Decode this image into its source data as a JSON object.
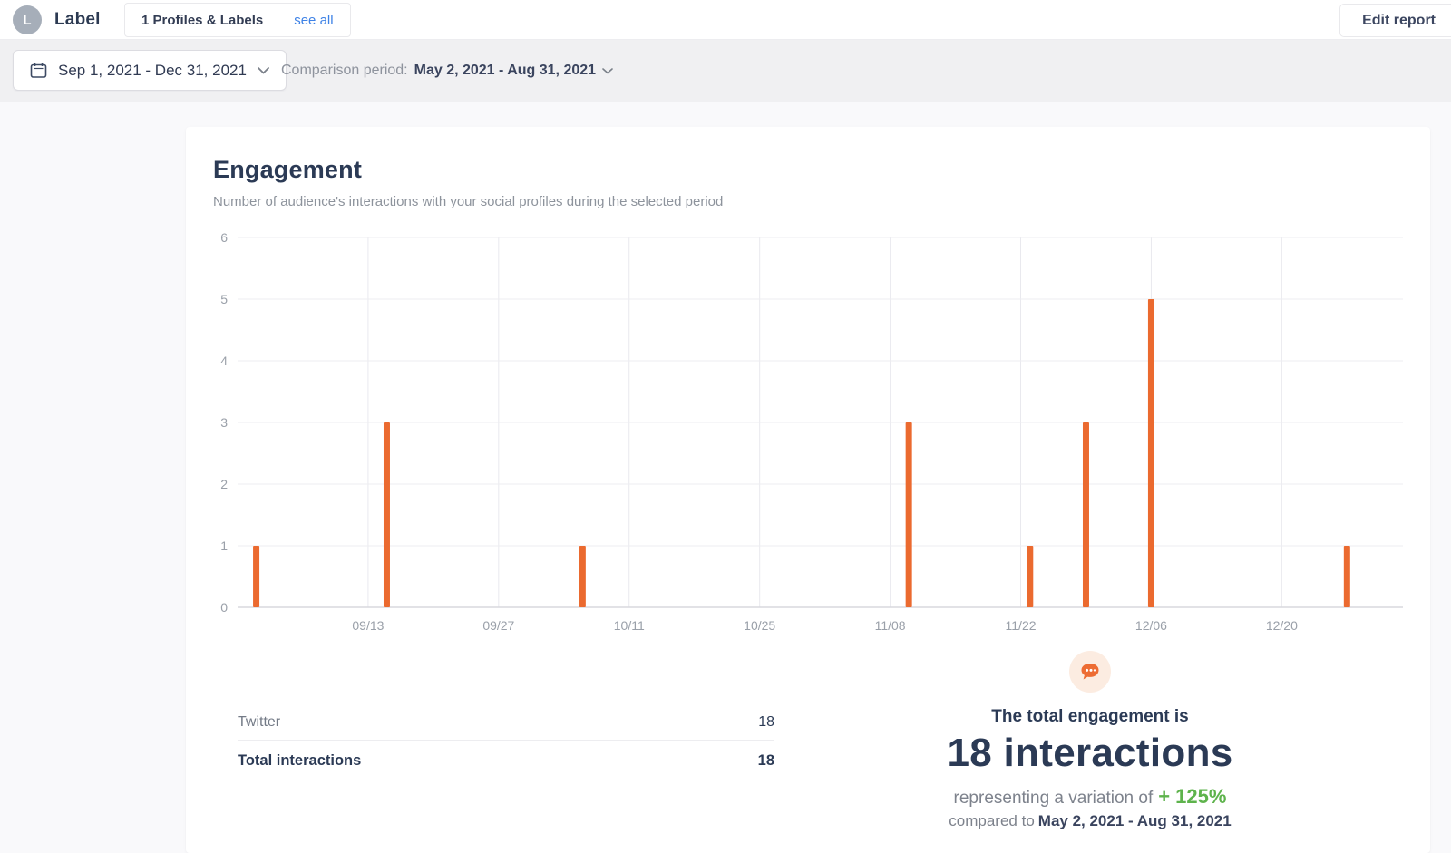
{
  "header": {
    "avatar_letter": "L",
    "brand": "Label",
    "profiles_count_label": "1 Profiles & Labels",
    "see_all": "see all",
    "edit_report": "Edit report"
  },
  "toolbar": {
    "date_range": "Sep 1, 2021 - Dec 31, 2021",
    "comparison_label": "Comparison period:",
    "comparison_value": "May 2, 2021 - Aug 31, 2021"
  },
  "card": {
    "title": "Engagement",
    "subtitle": "Number of audience's interactions with your social profiles during the selected period"
  },
  "chart_data": {
    "type": "bar",
    "title": "Engagement",
    "series_name": "Twitter",
    "x": [
      "09/01",
      "09/15",
      "10/06",
      "11/10",
      "11/23",
      "11/29",
      "12/06",
      "12/27"
    ],
    "values": [
      1,
      3,
      1,
      3,
      1,
      3,
      5,
      1
    ],
    "x_ticks": [
      "09/13",
      "09/27",
      "10/11",
      "10/25",
      "11/08",
      "11/22",
      "12/06",
      "12/20"
    ],
    "y_ticks": [
      0,
      1,
      2,
      3,
      4,
      5,
      6
    ],
    "ylim": [
      0,
      6
    ],
    "x_range": [
      "08/30",
      "01/02"
    ],
    "xlabel": "",
    "ylabel": "",
    "grid": true,
    "legend": false,
    "bar_color": "#eb6a2f"
  },
  "table": {
    "rows": [
      {
        "label": "Twitter",
        "value": "18"
      }
    ],
    "total_label": "Total interactions",
    "total_value": "18"
  },
  "summary": {
    "lead": "The total engagement is",
    "headline": "18 interactions",
    "variation_text": "representing a variation of",
    "variation_value": "+ 125%",
    "compared_text": "compared to",
    "compared_value": "May 2, 2021 - Aug 31, 2021",
    "accent_green": "#5eb34c",
    "accent_orange": "#ed6c33"
  }
}
